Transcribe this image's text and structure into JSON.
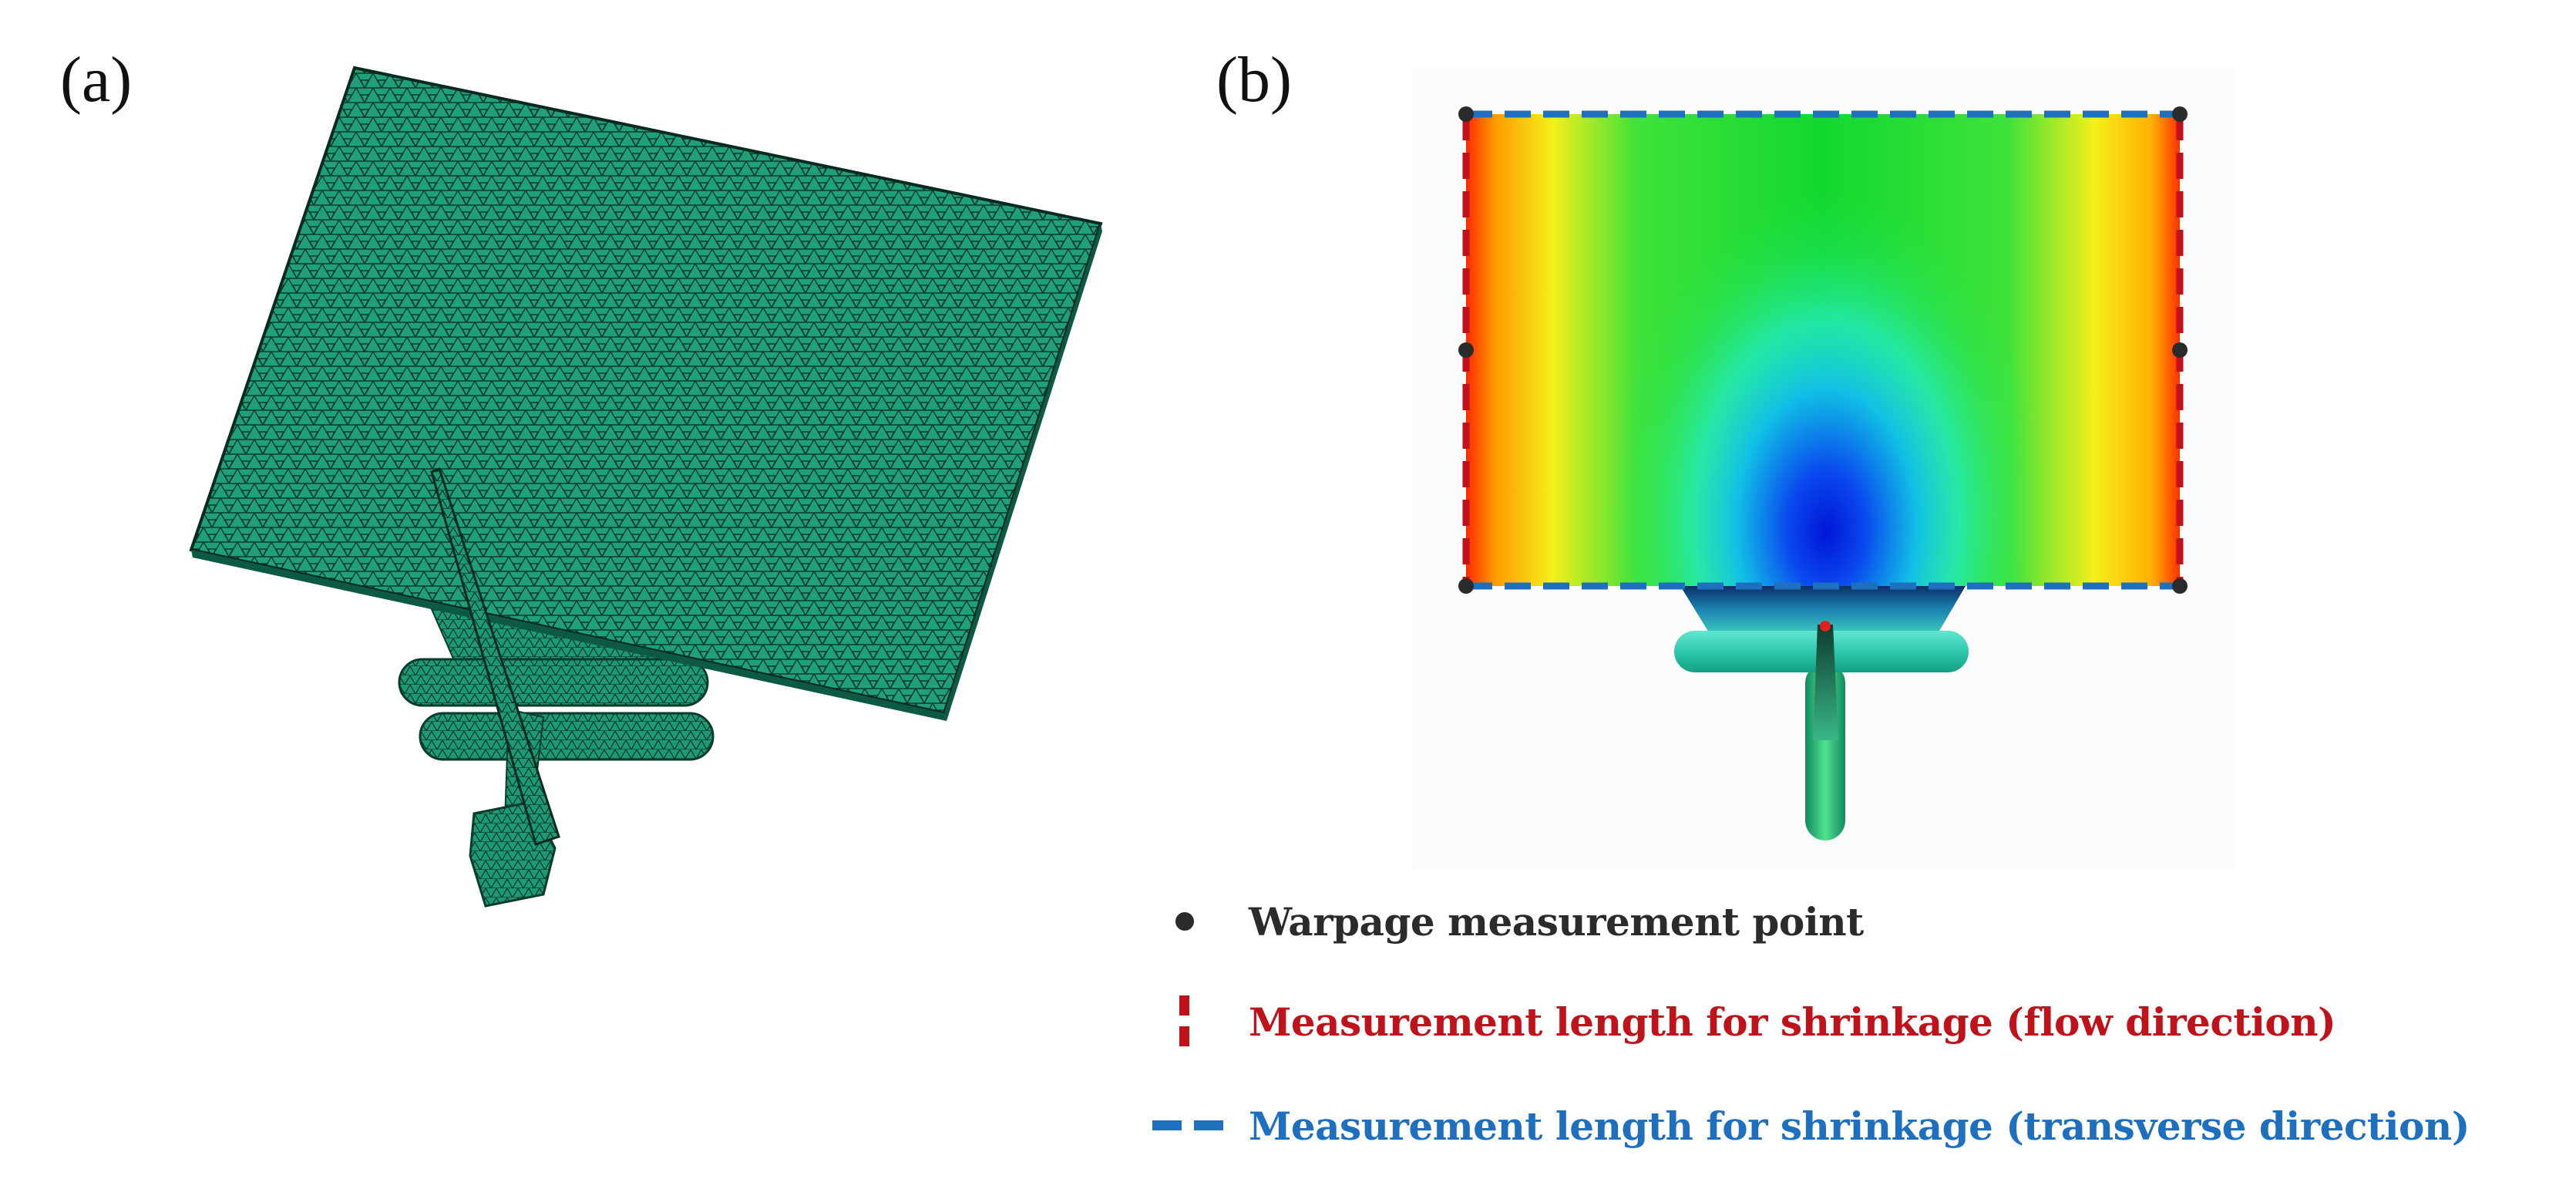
{
  "panels": {
    "a": {
      "label": "(a)"
    },
    "b": {
      "label": "(b)"
    }
  },
  "legend": {
    "items": [
      {
        "text": "Warpage measurement point",
        "color": "#2b2b2b",
        "marker": "dot"
      },
      {
        "text": "Measurement length for shrinkage (flow direction)",
        "color": "#c0121a",
        "marker": "red-dashed-vertical"
      },
      {
        "text": "Measurement length for shrinkage (transverse direction)",
        "color": "#1f6fbf",
        "marker": "blue-dashed-horizontal"
      }
    ]
  },
  "colors": {
    "mesh": "#1fa07a",
    "mesh_lines": "#0c3b2c",
    "flow_line": "#c0121a",
    "transverse_line": "#1f6fbf",
    "point": "#2b2b2b"
  }
}
